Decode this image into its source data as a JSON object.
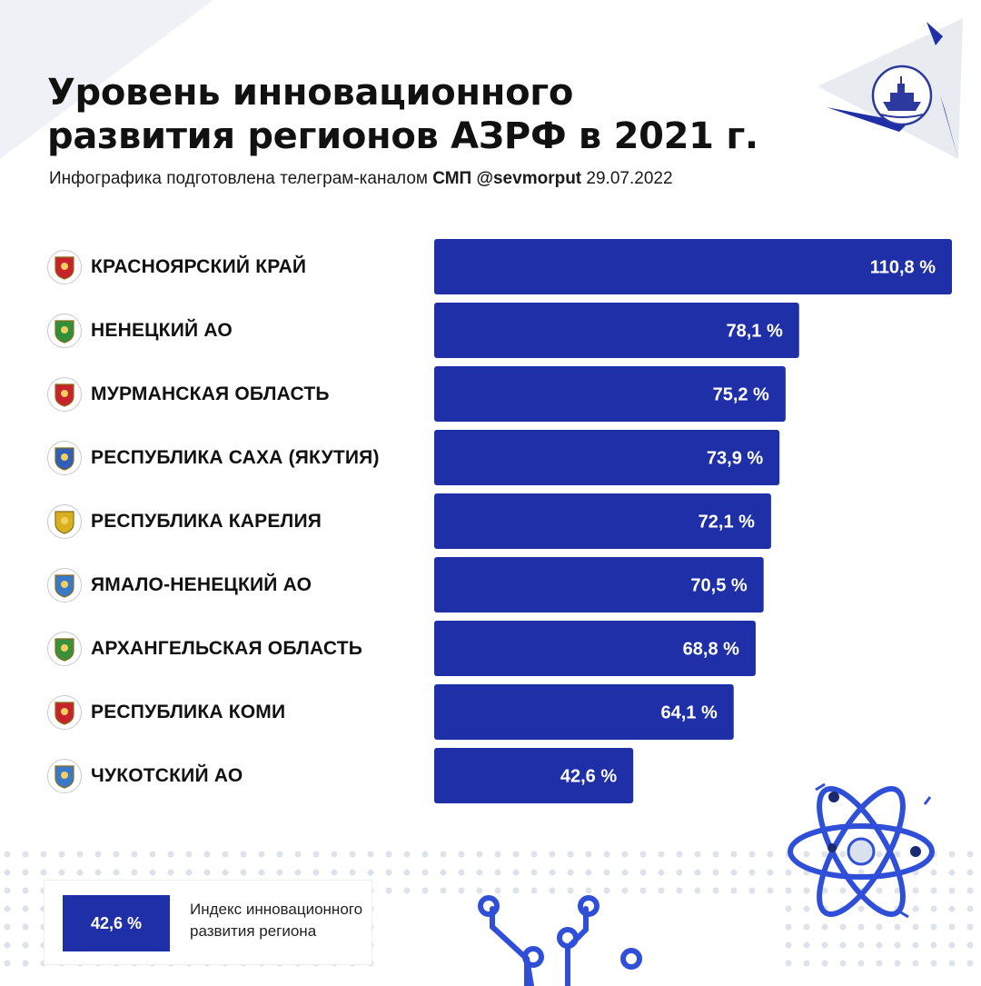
{
  "header": {
    "title_line1": "Уровень инновационного",
    "title_line2": "развития регионов АЗРФ в 2021 г.",
    "subtitle_prefix": "Инфографика подготовлена телеграм-каналом",
    "subtitle_channel": "СМП @sevmorput",
    "subtitle_date": "29.07.2022"
  },
  "colors": {
    "bar": "#1f2fa8",
    "accent_triangle": "#1f2fa8",
    "light_triangle": "#e9edf2",
    "dots": "#dde3ea"
  },
  "icons": {
    "logo": "icebreaker-ship-logo",
    "emblems": "region-coat-of-arms",
    "atom": "atom-icon",
    "circuit": "circuit-icon"
  },
  "chart_data": {
    "type": "bar",
    "orientation": "horizontal",
    "categories": [
      "КРАСНОЯРСКИЙ КРАЙ",
      "НЕНЕЦКИЙ АО",
      "МУРМАНСКАЯ ОБЛАСТЬ",
      "РЕСПУБЛИКА САХА (ЯКУТИЯ)",
      "РЕСПУБЛИКА КАРЕЛИЯ",
      "ЯМАЛО-НЕНЕЦКИЙ АО",
      "АРХАНГЕЛЬСКАЯ ОБЛАСТЬ",
      "РЕСПУБЛИКА КОМИ",
      "ЧУКОТСКИЙ АО"
    ],
    "values": [
      110.8,
      78.1,
      75.2,
      73.9,
      72.1,
      70.5,
      68.8,
      64.1,
      42.6
    ],
    "value_labels": [
      "110,8 %",
      "78,1 %",
      "75,2 %",
      "73,9 %",
      "72,1 %",
      "70,5 %",
      "68,8 %",
      "64,1 %",
      "42,6 %"
    ],
    "title": "",
    "xlabel": "",
    "ylabel": "",
    "xlim": [
      0,
      110.8
    ],
    "grid": false,
    "legend_position": "bottom-left"
  },
  "legend": {
    "swatch_label": "42,6 %",
    "description": "Индекс инновационного развития региона"
  }
}
